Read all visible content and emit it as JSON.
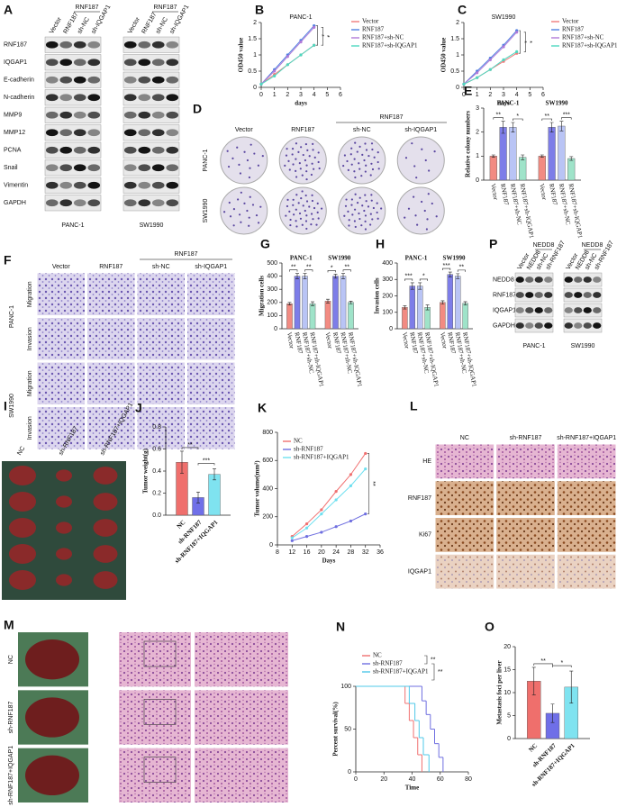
{
  "figure": {
    "blots": [
      {
        "label": "A",
        "columns": [
          "Vector",
          "RNF187",
          "sh-NC",
          "sh-IQGAP1"
        ],
        "header": "RNF187",
        "proteins": [
          "RNF187",
          "IQGAP1",
          "E-cadherin",
          "N-cadherin",
          "MMP9",
          "MMP12",
          "PCNA",
          "Snail",
          "Vimentin",
          "GAPDH"
        ],
        "cells": [
          "PANC-1",
          "SW1990"
        ]
      },
      {
        "label": "P",
        "columns": [
          "Vector",
          "NEDD8",
          "sh-NC",
          "sh-RNF187"
        ],
        "header": "NEDD8",
        "proteins": [
          "NEDD8",
          "RNF187",
          "IQGAP1",
          "GAPDH"
        ],
        "cells": [
          "PANC-1",
          "SW1990"
        ]
      }
    ],
    "images": [
      {
        "label": "D",
        "columns": [
          "Vector",
          "RNF187",
          "sh-NC",
          "sh-IQGAP1"
        ],
        "header": "RNF187",
        "rows": [
          "PANC-1",
          "SW1990"
        ]
      },
      {
        "label": "F",
        "columns": [
          "Vector",
          "RNF187",
          "sh-NC",
          "sh-IQGAP1"
        ],
        "header": "RNF187",
        "rows": [
          "PANC-1",
          "SW1990"
        ],
        "subrows": [
          "Migration",
          "Invasion"
        ]
      },
      {
        "label": "I",
        "columns": [
          "NC",
          "sh-RNF187",
          "sh-RNF187+IQGAP1"
        ]
      },
      {
        "label": "L",
        "columns": [
          "NC",
          "sh-RNF187",
          "sh-RNF187+IQGAP1"
        ],
        "rows": [
          "HE",
          "RNF187",
          "Ki67",
          "IQGAP1"
        ]
      },
      {
        "label": "M",
        "rows": [
          "NC",
          "sh-RNF187",
          "sh-RNF187+IQGAP1"
        ]
      }
    ]
  },
  "chart_data": [
    {
      "panel": "B",
      "type": "line",
      "title": "PANC-1",
      "x_label": "days",
      "y_label": "OD450 value",
      "x": [
        0,
        1,
        2,
        3,
        4
      ],
      "xlim": [
        0,
        6
      ],
      "xticks": [
        0,
        1,
        2,
        3,
        4,
        5,
        6
      ],
      "ylim": [
        0,
        2
      ],
      "yticks": [
        0,
        0.5,
        1,
        1.5,
        2
      ],
      "series": [
        {
          "name": "Vector",
          "color": "#f07c7c",
          "values": [
            0.1,
            0.4,
            0.7,
            1.0,
            1.3
          ]
        },
        {
          "name": "RNF187",
          "color": "#4f7fe0",
          "values": [
            0.1,
            0.55,
            1.0,
            1.45,
            1.9
          ]
        },
        {
          "name": "RNF187+sh-NC",
          "color": "#b07ad8",
          "values": [
            0.1,
            0.5,
            0.95,
            1.4,
            1.85
          ]
        },
        {
          "name": "RNF187+sh-IQGAP1",
          "color": "#4fd8c0",
          "values": [
            0.1,
            0.35,
            0.7,
            1.0,
            1.3
          ]
        }
      ],
      "annotations": [
        "*",
        "*"
      ]
    },
    {
      "panel": "C",
      "type": "line",
      "title": "SW1990",
      "x_label": "days",
      "y_label": "OD450 value",
      "x": [
        0,
        1,
        2,
        3,
        4
      ],
      "xlim": [
        0,
        6
      ],
      "xticks": [
        0,
        1,
        2,
        3,
        4,
        5,
        6
      ],
      "ylim": [
        0,
        2
      ],
      "yticks": [
        0,
        0.5,
        1,
        1.5,
        2
      ],
      "series": [
        {
          "name": "Vector",
          "color": "#f07c7c",
          "values": [
            0.1,
            0.3,
            0.55,
            0.8,
            1.05
          ]
        },
        {
          "name": "RNF187",
          "color": "#4f7fe0",
          "values": [
            0.1,
            0.5,
            0.9,
            1.3,
            1.75
          ]
        },
        {
          "name": "RNF187+sh-NC",
          "color": "#b07ad8",
          "values": [
            0.1,
            0.45,
            0.85,
            1.25,
            1.7
          ]
        },
        {
          "name": "RNF187+sh-IQGAP1",
          "color": "#4fd8c0",
          "values": [
            0.1,
            0.3,
            0.55,
            0.85,
            1.1
          ]
        }
      ],
      "annotations": [
        "*",
        "*"
      ]
    },
    {
      "panel": "E",
      "type": "bar",
      "y_label": "Relative colony numbers",
      "ylim": [
        0,
        3
      ],
      "yticks": [
        0,
        1,
        2,
        3
      ],
      "colors": [
        "#f28b82",
        "#7d7de8",
        "#b9c4f5",
        "#9fe3c9"
      ],
      "groups": [
        {
          "name": "PANC-1",
          "categories": [
            "Vector",
            "RNF187",
            "RNF187+sh-NC",
            "RNF187+sh-IQGAP1"
          ],
          "values": [
            1.0,
            2.2,
            2.2,
            0.95
          ],
          "errors": [
            0.05,
            0.25,
            0.2,
            0.1
          ]
        },
        {
          "name": "SW1990",
          "categories": [
            "Vector",
            "RNF187",
            "RNF187+sh-NC",
            "RNF187+sh-IQGAP1"
          ],
          "values": [
            1.0,
            2.2,
            2.25,
            0.9
          ],
          "errors": [
            0.05,
            0.2,
            0.2,
            0.08
          ]
        }
      ],
      "annotations": [
        "**",
        "*",
        "**",
        "***"
      ]
    },
    {
      "panel": "G",
      "type": "bar",
      "y_label": "Migration cells",
      "ylim": [
        0,
        500
      ],
      "yticks": [
        0,
        100,
        200,
        300,
        400,
        500
      ],
      "colors": [
        "#f28b82",
        "#7d7de8",
        "#b9c4f5",
        "#9fe3c9"
      ],
      "groups": [
        {
          "name": "PANC-1",
          "categories": [
            "Vector",
            "RNF187",
            "RNF187+sh-NC",
            "RNF187+sh-IQGAP1"
          ],
          "values": [
            190,
            400,
            400,
            190
          ],
          "errors": [
            10,
            20,
            20,
            15
          ]
        },
        {
          "name": "SW1990",
          "categories": [
            "Vector",
            "RNF187",
            "RNF187+sh-NC",
            "RNF187+sh-IQGAP1"
          ],
          "values": [
            210,
            400,
            400,
            200
          ],
          "errors": [
            15,
            15,
            20,
            10
          ]
        }
      ],
      "annotations": [
        "**",
        "**",
        "*",
        "**"
      ]
    },
    {
      "panel": "H",
      "type": "bar",
      "y_label": "Invasion cells",
      "ylim": [
        0,
        400
      ],
      "yticks": [
        0,
        100,
        200,
        300,
        400
      ],
      "colors": [
        "#f28b82",
        "#7d7de8",
        "#b9c4f5",
        "#9fe3c9"
      ],
      "groups": [
        {
          "name": "PANC-1",
          "categories": [
            "Vector",
            "RNF187",
            "RNF187+sh-NC",
            "RNF187+sh-IQGAP1"
          ],
          "values": [
            130,
            260,
            260,
            130
          ],
          "errors": [
            10,
            20,
            20,
            15
          ]
        },
        {
          "name": "SW1990",
          "categories": [
            "Vector",
            "RNF187",
            "RNF187+sh-NC",
            "RNF187+sh-IQGAP1"
          ],
          "values": [
            160,
            330,
            320,
            155
          ],
          "errors": [
            10,
            15,
            15,
            10
          ]
        }
      ],
      "annotations": [
        "***",
        "*",
        "***",
        "**"
      ]
    },
    {
      "panel": "J",
      "type": "bar",
      "y_label": "Tumor weight(g)",
      "categories": [
        "NC",
        "sh-RNF187",
        "sh-RNF187+IQGAP1"
      ],
      "values": [
        0.48,
        0.16,
        0.37
      ],
      "errors": [
        0.1,
        0.05,
        0.05
      ],
      "colors": [
        "#ef6f6c",
        "#6f6fe8",
        "#7fe3f0"
      ],
      "ylim": [
        0,
        0.8
      ],
      "yticks": [
        {
          "value": 0,
          "label": "0.0"
        },
        0.2,
        0.4,
        0.6,
        0.8
      ],
      "annotations": [
        "**",
        "***"
      ]
    },
    {
      "panel": "K",
      "type": "line",
      "x_label": "Days",
      "y_label": "Tumor volume(mm³)",
      "x": [
        12,
        16,
        20,
        24,
        28,
        32
      ],
      "xlim": [
        8,
        36
      ],
      "xticks": [
        8,
        12,
        16,
        20,
        24,
        28,
        32,
        36
      ],
      "ylim": [
        0,
        800
      ],
      "yticks": [
        0,
        200,
        400,
        600,
        800
      ],
      "series": [
        {
          "name": "NC",
          "color": "#f07070",
          "values": [
            60,
            150,
            250,
            380,
            500,
            650
          ]
        },
        {
          "name": "sh-RNF187",
          "color": "#6f6fe0",
          "values": [
            30,
            60,
            90,
            130,
            170,
            220
          ]
        },
        {
          "name": "sh-RNF187+IQGAP1",
          "color": "#6fe0f0",
          "values": [
            50,
            120,
            220,
            320,
            420,
            540
          ]
        }
      ],
      "annotations": [
        "**"
      ]
    },
    {
      "panel": "N",
      "type": "survival",
      "x_label": "Time",
      "y_label": "Percent survival(%)",
      "xlim": [
        0,
        80
      ],
      "xticks": [
        0,
        20,
        40,
        60,
        80
      ],
      "ylim": [
        0,
        100
      ],
      "yticks": [
        0,
        50,
        100
      ],
      "series": [
        {
          "name": "NC",
          "color": "#f07070",
          "x": [
            0,
            35,
            38,
            41,
            44,
            47
          ],
          "values": [
            100,
            80,
            60,
            40,
            20,
            0
          ]
        },
        {
          "name": "sh-RNF187",
          "color": "#6f6fe0",
          "x": [
            0,
            47,
            50,
            53,
            56,
            59,
            62
          ],
          "values": [
            100,
            83,
            67,
            50,
            33,
            17,
            0
          ]
        },
        {
          "name": "sh-RNF187+IQGAP1",
          "color": "#4fc8e8",
          "x": [
            0,
            38,
            42,
            45,
            48,
            52
          ],
          "values": [
            100,
            80,
            60,
            40,
            20,
            0
          ]
        }
      ],
      "annotations": [
        "**",
        "**"
      ]
    },
    {
      "panel": "O",
      "type": "bar",
      "y_label": "Metastasis foci per liver",
      "categories": [
        "NC",
        "sh-RNF187",
        "sh-RNF187+IQGAP1"
      ],
      "values": [
        12.5,
        5.5,
        11.2
      ],
      "errors": [
        3,
        2,
        3.5
      ],
      "colors": [
        "#ef6f6c",
        "#6f6fe8",
        "#7fe3f0"
      ],
      "ylim": [
        0,
        20
      ],
      "yticks": [
        0,
        5,
        10,
        15,
        20
      ],
      "annotations": [
        "**",
        "*"
      ]
    }
  ]
}
